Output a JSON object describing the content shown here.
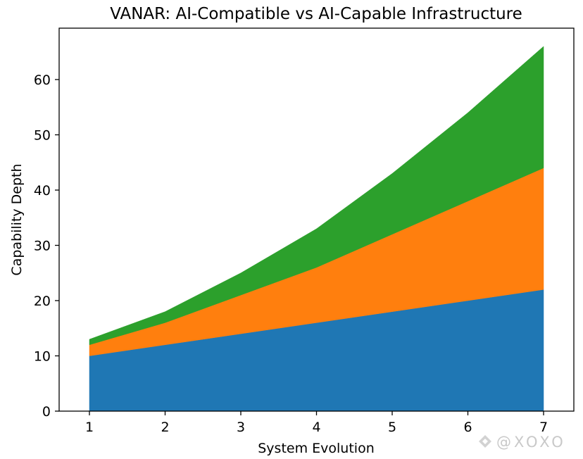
{
  "chart_data": {
    "type": "area",
    "stacked": true,
    "title": "VANAR: AI-Compatible vs AI-Capable Infrastructure",
    "xlabel": "System Evolution",
    "ylabel": "Capability Depth",
    "x": [
      1,
      2,
      3,
      4,
      5,
      6,
      7
    ],
    "xlim": [
      0.6,
      7.4
    ],
    "ylim": [
      0,
      69.3
    ],
    "xticks": [
      1,
      2,
      3,
      4,
      5,
      6,
      7
    ],
    "yticks": [
      0,
      10,
      20,
      30,
      40,
      50,
      60
    ],
    "grid": false,
    "legend": "none",
    "series": [
      {
        "values": [
          10,
          12,
          14,
          16,
          18,
          20,
          22
        ],
        "color": "#1f77b4"
      },
      {
        "values": [
          2,
          4,
          7,
          10,
          14,
          18,
          22
        ],
        "color": "#ff7f0e"
      },
      {
        "values": [
          1,
          2,
          4,
          7,
          11,
          16,
          22
        ],
        "color": "#2ca02c"
      }
    ]
  },
  "watermark": {
    "icon": "binance-diamond-icon",
    "text": "@XOXO"
  }
}
